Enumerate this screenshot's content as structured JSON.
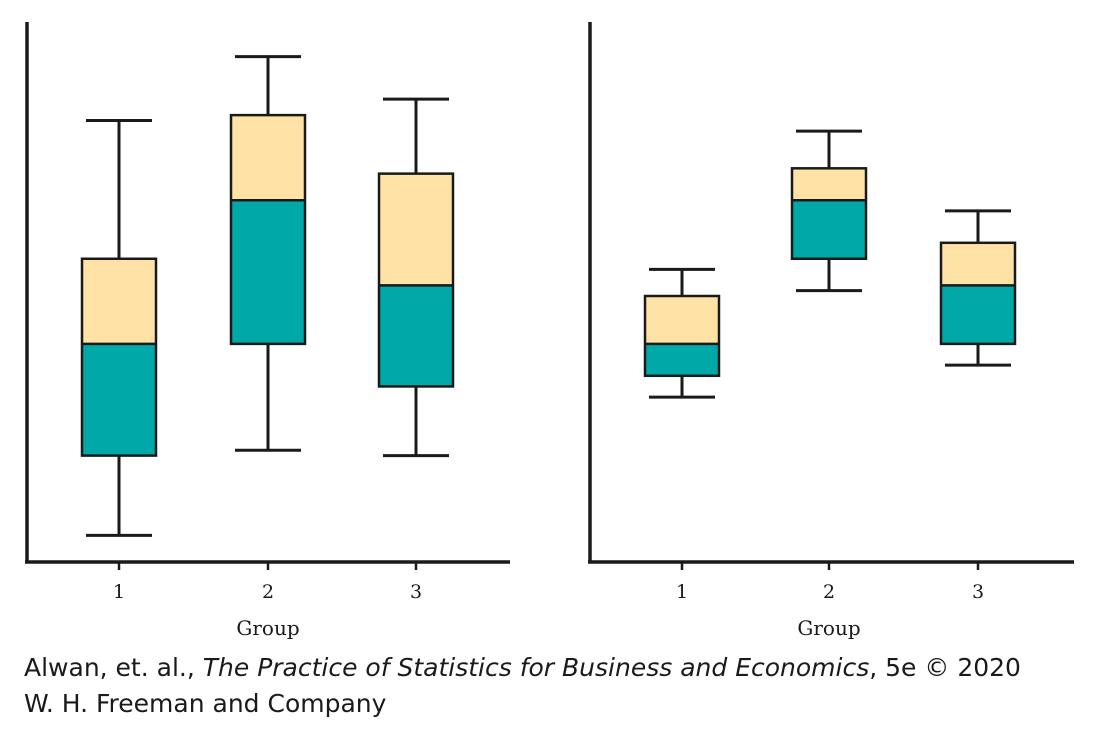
{
  "colors": {
    "upper_box": "#FFE3A6",
    "lower_box": "#00A9A8",
    "ink": "#1A1A1A"
  },
  "chart_data": [
    {
      "type": "boxplot",
      "xlabel": "Group",
      "ylabel": "",
      "categories": [
        "1",
        "2",
        "3"
      ],
      "ylim": [
        0,
        100
      ],
      "grid": false,
      "boxes": [
        {
          "category": "1",
          "min": 5,
          "q1": 20,
          "median": 41,
          "q3": 57,
          "max": 83
        },
        {
          "category": "2",
          "min": 21,
          "q1": 41,
          "median": 68,
          "q3": 84,
          "max": 95
        },
        {
          "category": "3",
          "min": 20,
          "q1": 33,
          "median": 52,
          "q3": 73,
          "max": 87
        }
      ]
    },
    {
      "type": "boxplot",
      "xlabel": "Group",
      "ylabel": "",
      "categories": [
        "1",
        "2",
        "3"
      ],
      "ylim": [
        0,
        100
      ],
      "grid": false,
      "boxes": [
        {
          "category": "1",
          "min": 31,
          "q1": 35,
          "median": 41,
          "q3": 50,
          "max": 55
        },
        {
          "category": "2",
          "min": 51,
          "q1": 57,
          "median": 68,
          "q3": 74,
          "max": 81
        },
        {
          "category": "3",
          "min": 37,
          "q1": 41,
          "median": 52,
          "q3": 60,
          "max": 66
        }
      ]
    }
  ],
  "credit": {
    "line1_prefix": "Alwan, et. al., ",
    "line1_title": "The Practice of Statistics for Business and Economics",
    "line1_suffix": ", 5e © 2020",
    "line2": "W. H. Freeman and Company"
  }
}
